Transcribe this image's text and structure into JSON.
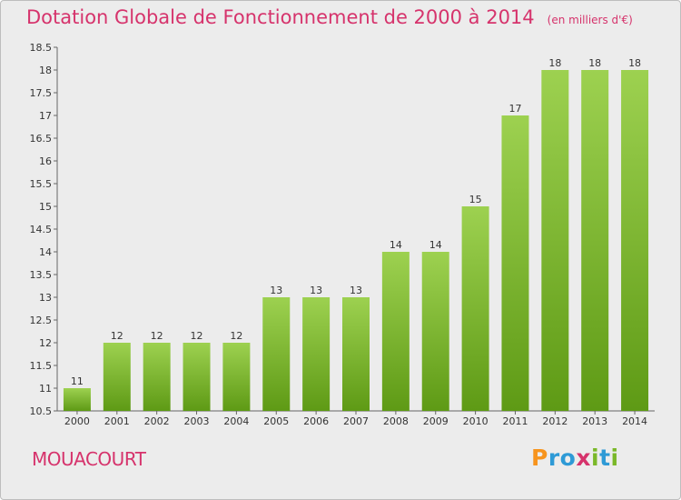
{
  "chart_data": {
    "type": "bar",
    "title": "Dotation Globale de Fonctionnement de 2000 à 2014",
    "unit_note": "(en milliers d'€)",
    "categories": [
      "2000",
      "2001",
      "2002",
      "2003",
      "2004",
      "2005",
      "2006",
      "2007",
      "2008",
      "2009",
      "2010",
      "2011",
      "2012",
      "2013",
      "2014"
    ],
    "values": [
      11,
      12,
      12,
      12,
      12,
      13,
      13,
      13,
      14,
      14,
      15,
      17,
      18,
      18,
      18
    ],
    "ylim": [
      10.5,
      18.5
    ],
    "yticks": [
      "10.5",
      "11",
      "11.5",
      "12",
      "12.5",
      "13",
      "13.5",
      "14",
      "14.5",
      "15",
      "15.5",
      "16",
      "16.5",
      "17",
      "17.5",
      "18",
      "18.5"
    ],
    "xlabel": "",
    "ylabel": "",
    "grid": false,
    "bar_color_top": "#9dd150",
    "bar_color_bottom": "#5e9a15"
  },
  "footer": {
    "commune": "MOUACOURT",
    "logo_letters": [
      "P",
      "r",
      "o",
      "x",
      "i",
      "t",
      "i"
    ],
    "logo_colors": [
      "#f7941d",
      "#2e9ad6",
      "#2e9ad6",
      "#d6336c",
      "#7ab829",
      "#2e9ad6",
      "#7ab829"
    ]
  },
  "colors": {
    "title": "#d6336c",
    "background": "#ececec"
  }
}
